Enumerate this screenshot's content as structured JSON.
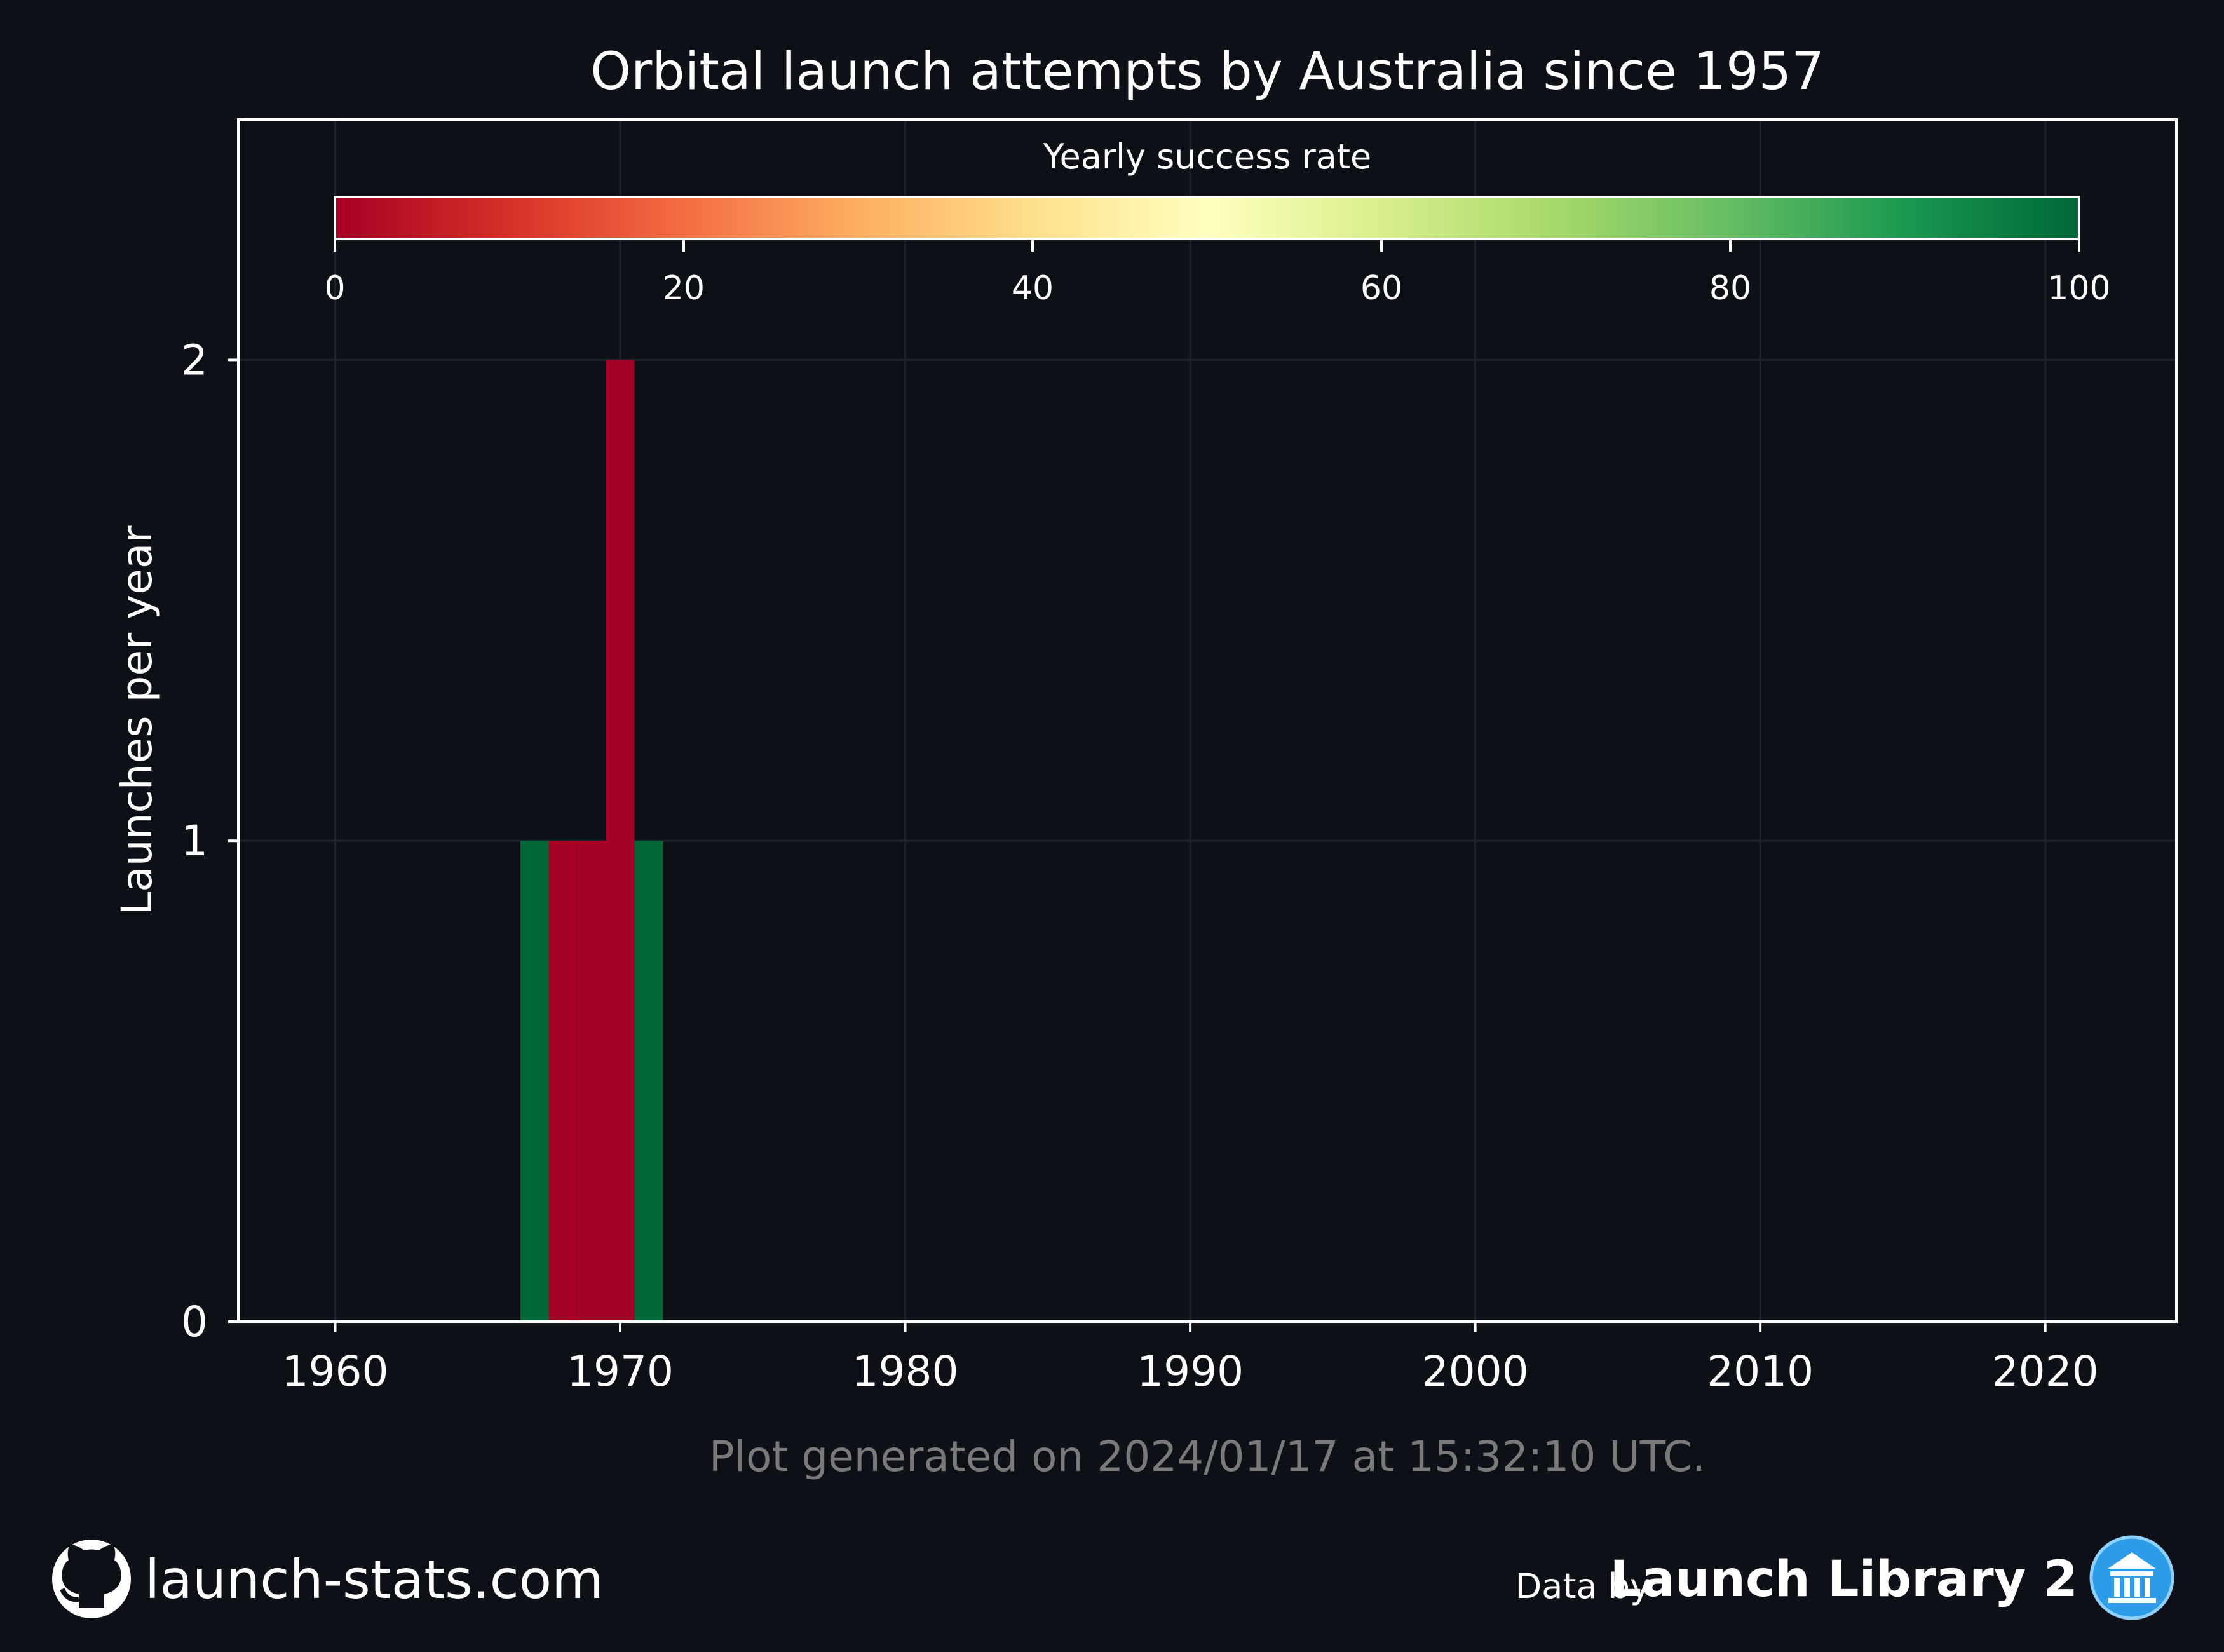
{
  "chart_data": {
    "type": "bar",
    "title": "Orbital launch attempts by Australia since 1957",
    "xlabel": "",
    "ylabel": "Launches per year",
    "xlim": [
      1956.6,
      2024.6
    ],
    "ylim": [
      0,
      2.5
    ],
    "x_ticks": [
      "1960",
      "1970",
      "1980",
      "1990",
      "2000",
      "2010",
      "2020"
    ],
    "y_ticks": [
      "0",
      "1",
      "2"
    ],
    "grid": true,
    "x": [
      1967,
      1968,
      1969,
      1970,
      1971
    ],
    "values": [
      1,
      1,
      1,
      2,
      1
    ],
    "success_rate": [
      100,
      0,
      0,
      0,
      100
    ],
    "colorbar": {
      "label": "Yearly success rate",
      "range": [
        0,
        100
      ],
      "ticks": [
        "0",
        "20",
        "40",
        "60",
        "80",
        "100"
      ],
      "colormap": "RdYlGn",
      "colors": [
        "#a50026",
        "#d73027",
        "#f46d43",
        "#fdae61",
        "#fee08b",
        "#ffffbf",
        "#d9ef8b",
        "#a6d96a",
        "#66bd63",
        "#1a9850",
        "#006837"
      ]
    }
  },
  "footer": {
    "generated": "Plot generated on 2024/01/17 at 15:32:10 UTC.",
    "site": "launch-stats.com",
    "data_by": "Data by",
    "source": "Launch Library 2"
  },
  "colors": {
    "background": "#0d1017",
    "foreground": "#ffffff",
    "grid": "#1f232b",
    "note": "#7a7a7a",
    "logo_blue": "#2c9be8"
  },
  "icons": {
    "left": "github-icon",
    "right": "launch-library-logo-icon"
  }
}
